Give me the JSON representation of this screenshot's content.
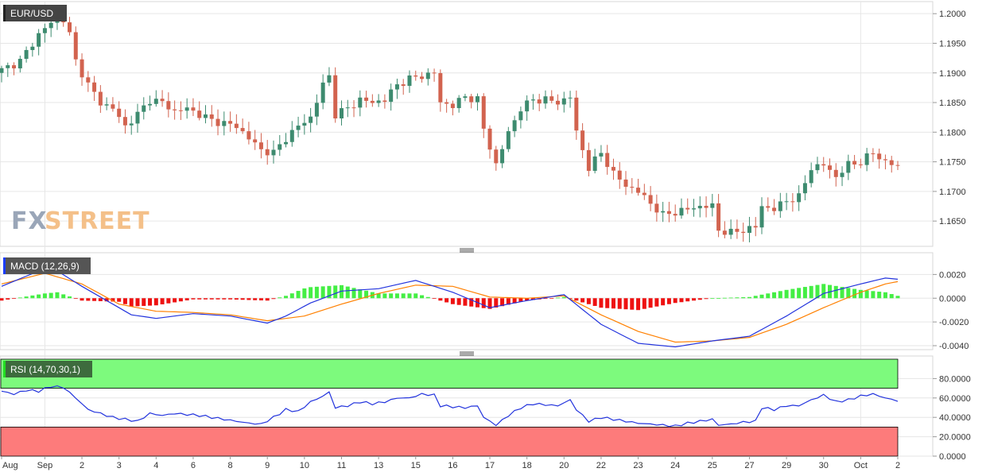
{
  "colors": {
    "up": "#3d8b6f",
    "down": "#d2634f",
    "macd_line": "#2233dd",
    "signal_line": "#ff8000",
    "hist_up": "#44ee44",
    "hist_down": "#ee1111",
    "rsi_line": "#2233dd",
    "rsi_overbought_fill": "#7dfa7d",
    "rsi_oversold_fill": "#fd7b7b",
    "grid": "#e6e6e6"
  },
  "watermark": {
    "left": "FX",
    "right": "STREET",
    "left_color": "#9aa6b8",
    "right_color": "#f4c089"
  },
  "price_panel": {
    "label": "EUR/USD",
    "y_ticks": [
      "1.2000",
      "1.1950",
      "1.1900",
      "1.1850",
      "1.1800",
      "1.1750",
      "1.1700",
      "1.1650"
    ],
    "ylim": [
      1.161,
      1.2015
    ]
  },
  "macd_panel": {
    "label": "MACD (12,26,9)",
    "y_ticks": [
      "0.0020",
      "0.0000",
      "-0.0020",
      "-0.0040"
    ],
    "ylim": [
      -0.0042,
      0.0037
    ]
  },
  "rsi_panel": {
    "label": "RSI (14,70,30,1)",
    "y_ticks": [
      "80.0000",
      "60.0000",
      "40.0000",
      "20.0000",
      "0.0000"
    ],
    "ylim": [
      0,
      100
    ],
    "overbought": 70,
    "oversold": 30
  },
  "x_axis": {
    "labels": [
      {
        "label": "Aug",
        "idx": 0
      },
      {
        "label": "Sep",
        "idx": 7
      },
      {
        "label": "2",
        "idx": 13
      },
      {
        "label": "3",
        "idx": 19
      },
      {
        "label": "4",
        "idx": 25
      },
      {
        "label": "6",
        "idx": 31
      },
      {
        "label": "8",
        "idx": 37
      },
      {
        "label": "9",
        "idx": 43
      },
      {
        "label": "10",
        "idx": 49
      },
      {
        "label": "11",
        "idx": 55
      },
      {
        "label": "13",
        "idx": 61
      },
      {
        "label": "15",
        "idx": 67
      },
      {
        "label": "16",
        "idx": 73
      },
      {
        "label": "17",
        "idx": 79
      },
      {
        "label": "18",
        "idx": 85
      },
      {
        "label": "20",
        "idx": 91
      },
      {
        "label": "22",
        "idx": 97
      },
      {
        "label": "23",
        "idx": 103
      },
      {
        "label": "24",
        "idx": 109
      },
      {
        "label": "25",
        "idx": 115
      },
      {
        "label": "27",
        "idx": 121
      },
      {
        "label": "29",
        "idx": 127
      },
      {
        "label": "30",
        "idx": 133
      },
      {
        "label": "Oct",
        "idx": 139
      },
      {
        "label": "2",
        "idx": 145
      }
    ]
  },
  "chart_data": {
    "type": "candlestick",
    "title": "EUR/USD",
    "timeframe_note": "",
    "x_count": 146,
    "close_anchors": [
      [
        0,
        1.1905
      ],
      [
        3,
        1.192
      ],
      [
        6,
        1.1965
      ],
      [
        8,
        1.1985
      ],
      [
        10,
        1.199
      ],
      [
        11,
        1.1965
      ],
      [
        12,
        1.192
      ],
      [
        14,
        1.188
      ],
      [
        16,
        1.185
      ],
      [
        18,
        1.184
      ],
      [
        20,
        1.181
      ],
      [
        22,
        1.183
      ],
      [
        24,
        1.1855
      ],
      [
        26,
        1.185
      ],
      [
        28,
        1.1835
      ],
      [
        30,
        1.184
      ],
      [
        32,
        1.183
      ],
      [
        34,
        1.182
      ],
      [
        36,
        1.1815
      ],
      [
        38,
        1.181
      ],
      [
        40,
        1.179
      ],
      [
        42,
        1.177
      ],
      [
        44,
        1.1765
      ],
      [
        46,
        1.179
      ],
      [
        48,
        1.181
      ],
      [
        50,
        1.1825
      ],
      [
        52,
        1.188
      ],
      [
        53,
        1.1895
      ],
      [
        54,
        1.183
      ],
      [
        56,
        1.184
      ],
      [
        58,
        1.1855
      ],
      [
        60,
        1.185
      ],
      [
        62,
        1.1855
      ],
      [
        64,
        1.188
      ],
      [
        66,
        1.189
      ],
      [
        68,
        1.1895
      ],
      [
        70,
        1.19
      ],
      [
        71,
        1.185
      ],
      [
        73,
        1.1845
      ],
      [
        75,
        1.186
      ],
      [
        77,
        1.1855
      ],
      [
        78,
        1.1805
      ],
      [
        80,
        1.1745
      ],
      [
        82,
        1.18
      ],
      [
        84,
        1.184
      ],
      [
        86,
        1.1855
      ],
      [
        88,
        1.1855
      ],
      [
        90,
        1.185
      ],
      [
        92,
        1.186
      ],
      [
        93,
        1.18
      ],
      [
        95,
        1.174
      ],
      [
        97,
        1.1765
      ],
      [
        99,
        1.173
      ],
      [
        101,
        1.171
      ],
      [
        103,
        1.17
      ],
      [
        105,
        1.168
      ],
      [
        107,
        1.166
      ],
      [
        109,
        1.1665
      ],
      [
        111,
        1.167
      ],
      [
        113,
        1.1675
      ],
      [
        115,
        1.1675
      ],
      [
        116,
        1.1635
      ],
      [
        118,
        1.163
      ],
      [
        120,
        1.1635
      ],
      [
        122,
        1.164
      ],
      [
        123,
        1.1675
      ],
      [
        125,
        1.167
      ],
      [
        127,
        1.1685
      ],
      [
        129,
        1.169
      ],
      [
        131,
        1.174
      ],
      [
        133,
        1.1745
      ],
      [
        135,
        1.1725
      ],
      [
        137,
        1.1745
      ],
      [
        139,
        1.175
      ],
      [
        141,
        1.1765
      ],
      [
        143,
        1.175
      ],
      [
        145,
        1.1742
      ]
    ],
    "macd_anchors": [
      [
        0,
        0.001
      ],
      [
        7,
        0.0025
      ],
      [
        9,
        0.0023
      ],
      [
        13,
        0.001
      ],
      [
        17,
        -0.0002
      ],
      [
        21,
        -0.0014
      ],
      [
        25,
        -0.0017
      ],
      [
        31,
        -0.0013
      ],
      [
        37,
        -0.0015
      ],
      [
        43,
        -0.0021
      ],
      [
        46,
        -0.0015
      ],
      [
        50,
        -0.0004
      ],
      [
        55,
        0.0006
      ],
      [
        61,
        0.0008
      ],
      [
        67,
        0.0015
      ],
      [
        73,
        0.0005
      ],
      [
        79,
        -0.0008
      ],
      [
        85,
        -0.0002
      ],
      [
        91,
        0.0003
      ],
      [
        97,
        -0.0022
      ],
      [
        103,
        -0.0038
      ],
      [
        109,
        -0.0041
      ],
      [
        115,
        -0.0036
      ],
      [
        121,
        -0.0032
      ],
      [
        127,
        -0.0015
      ],
      [
        133,
        0.0004
      ],
      [
        139,
        0.0012
      ],
      [
        143,
        0.0017
      ],
      [
        145,
        0.0016
      ]
    ],
    "signal_anchors": [
      [
        0,
        0.0012
      ],
      [
        7,
        0.0021
      ],
      [
        13,
        0.0012
      ],
      [
        19,
        -0.0005
      ],
      [
        25,
        -0.0011
      ],
      [
        31,
        -0.0012
      ],
      [
        37,
        -0.0014
      ],
      [
        43,
        -0.0019
      ],
      [
        49,
        -0.0015
      ],
      [
        55,
        -0.0005
      ],
      [
        61,
        0.0004
      ],
      [
        67,
        0.0011
      ],
      [
        73,
        0.001
      ],
      [
        79,
        0.0001
      ],
      [
        85,
        0.0
      ],
      [
        91,
        0.0002
      ],
      [
        97,
        -0.0014
      ],
      [
        103,
        -0.0028
      ],
      [
        109,
        -0.0037
      ],
      [
        115,
        -0.0036
      ],
      [
        121,
        -0.0033
      ],
      [
        127,
        -0.0022
      ],
      [
        133,
        -0.0008
      ],
      [
        139,
        0.0005
      ],
      [
        143,
        0.0012
      ],
      [
        145,
        0.0014
      ]
    ],
    "rsi_anchors": [
      [
        0,
        67
      ],
      [
        2,
        64
      ],
      [
        4,
        68
      ],
      [
        6,
        67
      ],
      [
        8,
        72
      ],
      [
        10,
        71
      ],
      [
        12,
        60
      ],
      [
        14,
        48
      ],
      [
        16,
        44
      ],
      [
        18,
        40
      ],
      [
        20,
        38
      ],
      [
        22,
        36
      ],
      [
        24,
        44
      ],
      [
        26,
        42
      ],
      [
        28,
        44
      ],
      [
        30,
        43
      ],
      [
        32,
        42
      ],
      [
        34,
        40
      ],
      [
        36,
        38
      ],
      [
        38,
        36
      ],
      [
        40,
        34
      ],
      [
        42,
        33
      ],
      [
        44,
        40
      ],
      [
        46,
        48
      ],
      [
        48,
        46
      ],
      [
        50,
        56
      ],
      [
        52,
        62
      ],
      [
        53,
        66
      ],
      [
        54,
        50
      ],
      [
        56,
        52
      ],
      [
        58,
        56
      ],
      [
        60,
        54
      ],
      [
        62,
        56
      ],
      [
        64,
        60
      ],
      [
        66,
        60
      ],
      [
        68,
        64
      ],
      [
        70,
        63
      ],
      [
        71,
        52
      ],
      [
        73,
        51
      ],
      [
        75,
        50
      ],
      [
        77,
        52
      ],
      [
        78,
        40
      ],
      [
        80,
        32
      ],
      [
        82,
        42
      ],
      [
        84,
        50
      ],
      [
        86,
        54
      ],
      [
        88,
        53
      ],
      [
        90,
        52
      ],
      [
        92,
        58
      ],
      [
        93,
        48
      ],
      [
        95,
        36
      ],
      [
        97,
        40
      ],
      [
        99,
        38
      ],
      [
        101,
        36
      ],
      [
        103,
        34
      ],
      [
        105,
        33
      ],
      [
        107,
        32
      ],
      [
        109,
        31
      ],
      [
        111,
        34
      ],
      [
        113,
        36
      ],
      [
        115,
        38
      ],
      [
        116,
        32
      ],
      [
        118,
        33
      ],
      [
        120,
        35
      ],
      [
        122,
        36
      ],
      [
        123,
        50
      ],
      [
        125,
        48
      ],
      [
        127,
        52
      ],
      [
        129,
        52
      ],
      [
        131,
        58
      ],
      [
        133,
        63
      ],
      [
        135,
        56
      ],
      [
        137,
        58
      ],
      [
        139,
        62
      ],
      [
        141,
        64
      ],
      [
        143,
        60
      ],
      [
        145,
        57
      ]
    ]
  }
}
